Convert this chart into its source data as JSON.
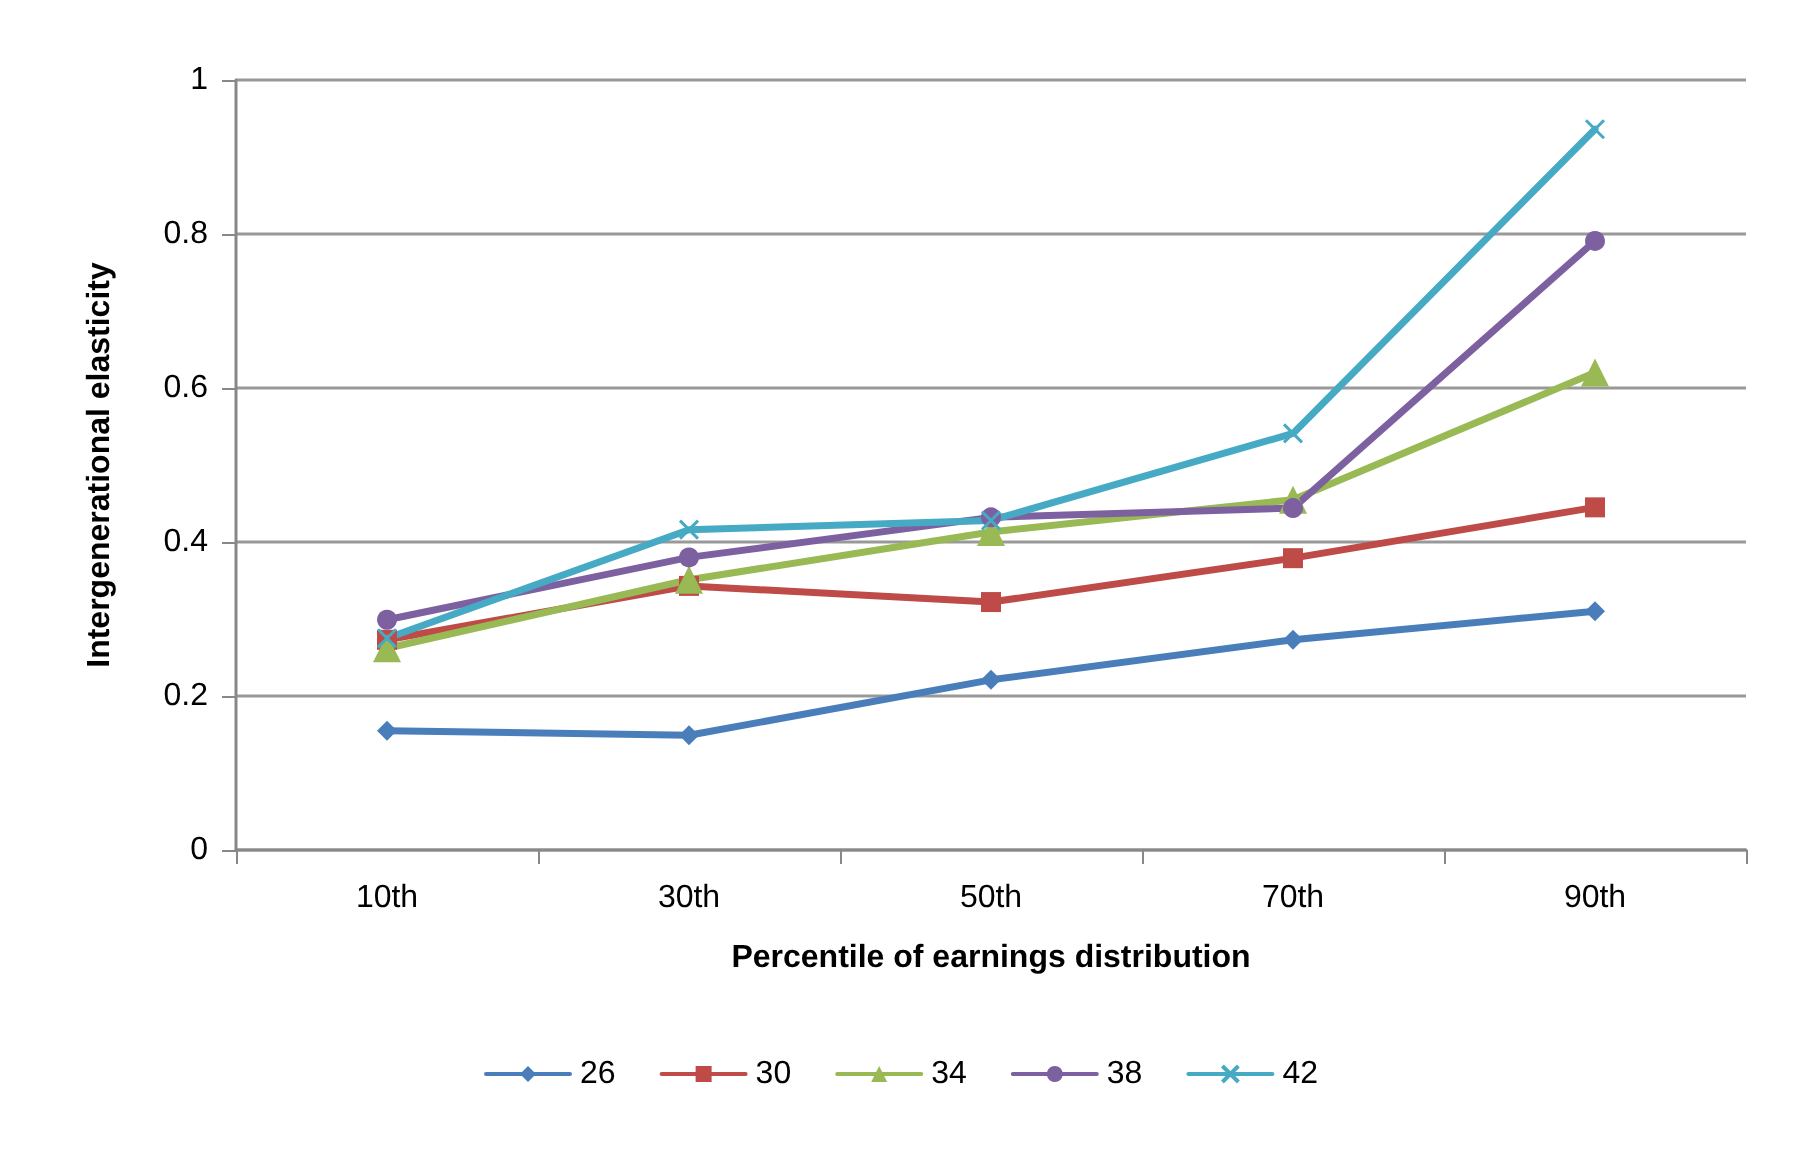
{
  "chart_data": {
    "type": "line",
    "xlabel": "Percentile of earnings distribution",
    "ylabel": "Intergenerational elasticity",
    "categories": [
      "10th",
      "30th",
      "50th",
      "70th",
      "90th"
    ],
    "ylim": [
      0,
      1
    ],
    "yticks": [
      0,
      0.2,
      0.4,
      0.6,
      0.8,
      1
    ],
    "grid": "y",
    "legend": "bottom",
    "line_style": "solid",
    "series": [
      {
        "name": "26",
        "color": "#4a7ebb",
        "marker": "diamond",
        "values": [
          0.155,
          0.149,
          0.221,
          0.273,
          0.31
        ]
      },
      {
        "name": "30",
        "color": "#be4b48",
        "marker": "square",
        "values": [
          0.273,
          0.343,
          0.322,
          0.379,
          0.445
        ]
      },
      {
        "name": "34",
        "color": "#98b954",
        "marker": "triangle",
        "values": [
          0.262,
          0.351,
          0.413,
          0.455,
          0.62
        ]
      },
      {
        "name": "38",
        "color": "#7d60a0",
        "marker": "circle",
        "values": [
          0.299,
          0.38,
          0.432,
          0.444,
          0.791
        ]
      },
      {
        "name": "42",
        "color": "#46aac5",
        "marker": "cross",
        "values": [
          0.275,
          0.416,
          0.428,
          0.541,
          0.936
        ]
      }
    ]
  }
}
